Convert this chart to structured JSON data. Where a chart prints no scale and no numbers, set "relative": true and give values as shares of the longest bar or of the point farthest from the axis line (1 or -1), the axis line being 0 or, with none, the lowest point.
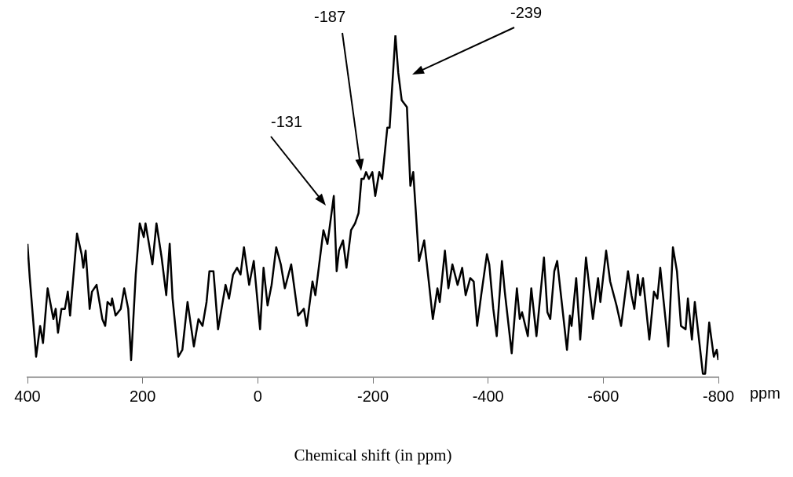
{
  "chart_data": {
    "type": "line",
    "relative": true,
    "xlabel": "Chemical shift (in ppm)",
    "color": "#000000",
    "xlim": [
      400,
      -800
    ],
    "xticks": [
      400,
      200,
      0,
      -200,
      -400,
      -600,
      -800
    ],
    "grid": false,
    "legend": false,
    "marker": "none",
    "line_style": "solid",
    "x": [
      400,
      396,
      385,
      378,
      373,
      365,
      355,
      351,
      347,
      341,
      335,
      330,
      326,
      314,
      306,
      303,
      299,
      292,
      288,
      280,
      270,
      265,
      261,
      255,
      253,
      247,
      238,
      232,
      225,
      220,
      212,
      205,
      198,
      195,
      191,
      183,
      176,
      167,
      159,
      153,
      148,
      138,
      131,
      122,
      111,
      103,
      96,
      89,
      84,
      77,
      69,
      56,
      50,
      43,
      36,
      30,
      24,
      15,
      7,
      -4,
      -10,
      -17,
      -24,
      -32,
      -40,
      -47,
      -58,
      -70,
      -80,
      -85,
      -95,
      -100,
      -114,
      -121,
      -132,
      -137,
      -141,
      -148,
      -154,
      -162,
      -169,
      -175,
      -180,
      -184,
      -188,
      -193,
      -199,
      -204,
      -211,
      -216,
      -225,
      -229,
      -239,
      -244,
      -250,
      -259,
      -265,
      -270,
      -280,
      -289,
      -297,
      -304,
      -312,
      -316,
      -325,
      -331,
      -338,
      -347,
      -355,
      -361,
      -369,
      -375,
      -381,
      -388,
      -398,
      -402,
      -409,
      -415,
      -424,
      -429,
      -441,
      -450,
      -455,
      -459,
      -469,
      -475,
      -484,
      -497,
      -503,
      -508,
      -515,
      -520,
      -537,
      -542,
      -545,
      -553,
      -560,
      -570,
      -582,
      -591,
      -595,
      -605,
      -612,
      -623,
      -631,
      -643,
      -649,
      -654,
      -660,
      -664,
      -669,
      -680,
      -688,
      -694,
      -699,
      -705,
      -713,
      -721,
      -728,
      -735,
      -743,
      -747,
      -754,
      -759,
      -773,
      -777,
      -784,
      -792,
      -797,
      -800
    ],
    "values": [
      0.39,
      0.29,
      0.06,
      0.15,
      0.1,
      0.26,
      0.17,
      0.2,
      0.13,
      0.2,
      0.2,
      0.25,
      0.18,
      0.42,
      0.36,
      0.32,
      0.37,
      0.2,
      0.25,
      0.27,
      0.17,
      0.15,
      0.22,
      0.21,
      0.23,
      0.18,
      0.2,
      0.26,
      0.2,
      0.05,
      0.3,
      0.45,
      0.41,
      0.45,
      0.41,
      0.33,
      0.45,
      0.35,
      0.24,
      0.39,
      0.23,
      0.06,
      0.08,
      0.22,
      0.09,
      0.17,
      0.15,
      0.22,
      0.31,
      0.31,
      0.14,
      0.27,
      0.23,
      0.3,
      0.32,
      0.3,
      0.38,
      0.27,
      0.34,
      0.14,
      0.32,
      0.21,
      0.27,
      0.38,
      0.33,
      0.26,
      0.33,
      0.18,
      0.2,
      0.15,
      0.28,
      0.24,
      0.43,
      0.39,
      0.53,
      0.31,
      0.37,
      0.4,
      0.32,
      0.43,
      0.45,
      0.48,
      0.58,
      0.58,
      0.6,
      0.58,
      0.6,
      0.53,
      0.6,
      0.58,
      0.73,
      0.73,
      1.0,
      0.89,
      0.81,
      0.79,
      0.56,
      0.6,
      0.34,
      0.4,
      0.28,
      0.17,
      0.26,
      0.22,
      0.37,
      0.26,
      0.33,
      0.27,
      0.32,
      0.24,
      0.29,
      0.28,
      0.15,
      0.24,
      0.36,
      0.33,
      0.2,
      0.12,
      0.34,
      0.25,
      0.07,
      0.26,
      0.17,
      0.19,
      0.12,
      0.26,
      0.12,
      0.35,
      0.19,
      0.17,
      0.31,
      0.34,
      0.08,
      0.18,
      0.15,
      0.29,
      0.11,
      0.35,
      0.17,
      0.29,
      0.22,
      0.37,
      0.28,
      0.21,
      0.15,
      0.31,
      0.24,
      0.2,
      0.3,
      0.24,
      0.29,
      0.11,
      0.25,
      0.23,
      0.32,
      0.22,
      0.09,
      0.38,
      0.31,
      0.15,
      0.14,
      0.23,
      0.11,
      0.22,
      0.01,
      0.01,
      0.16,
      0.06,
      0.08,
      0.05
    ],
    "annotations": [
      "-131",
      "-187",
      "-239",
      "ppm"
    ]
  }
}
